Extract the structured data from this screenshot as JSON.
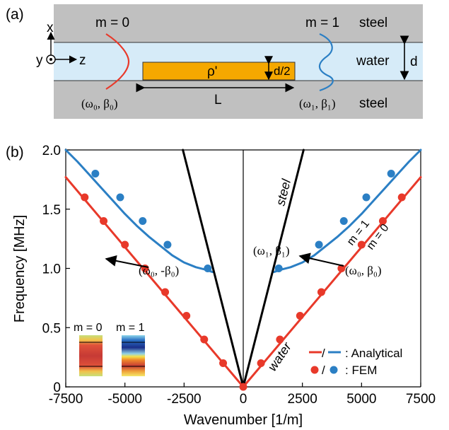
{
  "panel_a": {
    "label": "(a)",
    "steel_top": "steel",
    "steel_bottom": "steel",
    "water": "water",
    "d": "d",
    "d_half": "d/2",
    "rho": "ρ'",
    "L": "L",
    "axis_x": "x",
    "axis_y": "y",
    "axis_z": "z",
    "mode0": "m = 0",
    "mode1": "m = 1",
    "point0": "(ω₀, β₀)",
    "point1": "(ω₁, β₁)",
    "colors": {
      "steel": "#c0c0c0",
      "water": "#d6ebf8",
      "block": "#f5a800",
      "mode0": "#e8392a",
      "mode1": "#2b7fc4"
    }
  },
  "panel_b": {
    "label": "(b)",
    "annot_w1b1": "(ω₁, β₁)",
    "annot_w0b0": "(ω₀, β₀)",
    "annot_w0mb0": "(ω₀, -β₀)",
    "steel_label": "steel",
    "water_label": "water",
    "m1_label": "m = 1",
    "m0_label": "m = 0",
    "inset_m0": "m = 0",
    "inset_m1": "m = 1",
    "legend_analytical": "/      : Analytical",
    "legend_fem": "/      : FEM"
  },
  "chart_data": {
    "type": "line",
    "xlabel": "Wavenumber [1/m]",
    "ylabel": "Frequency [MHz]",
    "xlim": [
      -7500,
      7500
    ],
    "ylim": [
      0,
      2.0
    ],
    "xticks": [
      "-7500",
      "-5000",
      "-2500",
      "0",
      "2500",
      "5000",
      "7500"
    ],
    "yticks": [
      "0",
      "0.5",
      "1.0",
      "1.5",
      "2.0"
    ],
    "grid": false,
    "legend_position": "bottom-right",
    "series": [
      {
        "name": "",
        "kind": "line",
        "color": "#e8392a",
        "x": [
          -7500,
          0,
          7500
        ],
        "y": [
          1.77,
          0.0,
          1.77
        ]
      },
      {
        "name": "",
        "kind": "line",
        "color": "#2b7fc4",
        "x": [
          -7500,
          -7000,
          -6500,
          -6000,
          -5500,
          -5000,
          -4500,
          -4000,
          -3500,
          -3000,
          -2500,
          -2000,
          -1600,
          -1300
        ],
        "y": [
          2.0,
          1.9,
          1.79,
          1.68,
          1.57,
          1.46,
          1.36,
          1.27,
          1.19,
          1.11,
          1.05,
          1.01,
          0.99,
          0.97
        ]
      },
      {
        "name": "",
        "kind": "line",
        "color": "#2b7fc4",
        "x": [
          1300,
          1600,
          2000,
          2500,
          3000,
          3500,
          4000,
          4500,
          5000,
          5500,
          6000,
          6500,
          7000,
          7500
        ],
        "y": [
          0.97,
          0.99,
          1.01,
          1.05,
          1.11,
          1.19,
          1.27,
          1.36,
          1.46,
          1.57,
          1.68,
          1.79,
          1.9,
          2.0
        ]
      },
      {
        "name": "",
        "kind": "line",
        "color": "#000000",
        "x": [
          -2550,
          0,
          2550
        ],
        "y": [
          2.0,
          0.0,
          2.0
        ]
      },
      {
        "name": "",
        "kind": "scatter",
        "color": "#e8392a",
        "x": [
          -6700,
          -5900,
          -5000,
          -4150,
          -3300,
          -2400,
          -1650,
          -850,
          0,
          750,
          1550,
          2400,
          3300,
          4150,
          5000,
          5900,
          6700
        ],
        "y": [
          1.6,
          1.4,
          1.2,
          1.0,
          0.8,
          0.6,
          0.4,
          0.2,
          0.0,
          0.2,
          0.4,
          0.6,
          0.8,
          1.0,
          1.2,
          1.4,
          1.6
        ]
      },
      {
        "name": "",
        "kind": "scatter",
        "color": "#2b7fc4",
        "x": [
          -6250,
          -5200,
          -4250,
          -3200,
          -1500,
          1500,
          3200,
          4250,
          5200,
          6250
        ],
        "y": [
          1.8,
          1.6,
          1.4,
          1.2,
          1.0,
          1.0,
          1.2,
          1.4,
          1.6,
          1.8
        ]
      }
    ]
  }
}
